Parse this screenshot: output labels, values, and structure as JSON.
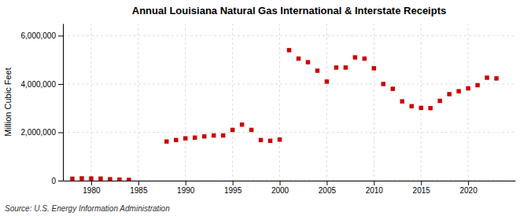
{
  "chart_data": {
    "type": "scatter",
    "title": "Annual Louisiana Natural Gas International & Interstate Receipts",
    "ylabel": "Million Cubic Feet",
    "annotations": [
      "Source: U.S. Energy Information Administration"
    ],
    "color": "#cc0000",
    "marker": "square",
    "grid": true,
    "xlim": [
      1977,
      2025
    ],
    "ylim": [
      0,
      6500000
    ],
    "xticks": [
      1980,
      1985,
      1990,
      1995,
      2000,
      2005,
      2010,
      2015,
      2020
    ],
    "yticks": [
      0,
      {
        "value": 2000000,
        "label": "2,000,000"
      },
      {
        "value": 4000000,
        "label": "4,000,000"
      },
      {
        "value": 6000000,
        "label": "6,000,000"
      }
    ],
    "x": [
      1978,
      1979,
      1980,
      1981,
      1982,
      1983,
      1984,
      1988,
      1989,
      1990,
      1991,
      1992,
      1993,
      1994,
      1995,
      1996,
      1997,
      1998,
      1999,
      2000,
      2001,
      2002,
      2003,
      2004,
      2005,
      2006,
      2007,
      2008,
      2009,
      2010,
      2011,
      2012,
      2013,
      2014,
      2015,
      2016,
      2017,
      2018,
      2019,
      2020,
      2021,
      2022,
      2023
    ],
    "values": [
      80000,
      95000,
      90000,
      85000,
      60000,
      45000,
      30000,
      1620000,
      1680000,
      1750000,
      1780000,
      1830000,
      1870000,
      1870000,
      2100000,
      2320000,
      2100000,
      1680000,
      1650000,
      1700000,
      5400000,
      5050000,
      4900000,
      4550000,
      4100000,
      4680000,
      4680000,
      5100000,
      5050000,
      4650000,
      4000000,
      3800000,
      3280000,
      3080000,
      3010000,
      3000000,
      3300000,
      3580000,
      3700000,
      3820000,
      3950000,
      4260000,
      4230000
    ]
  }
}
